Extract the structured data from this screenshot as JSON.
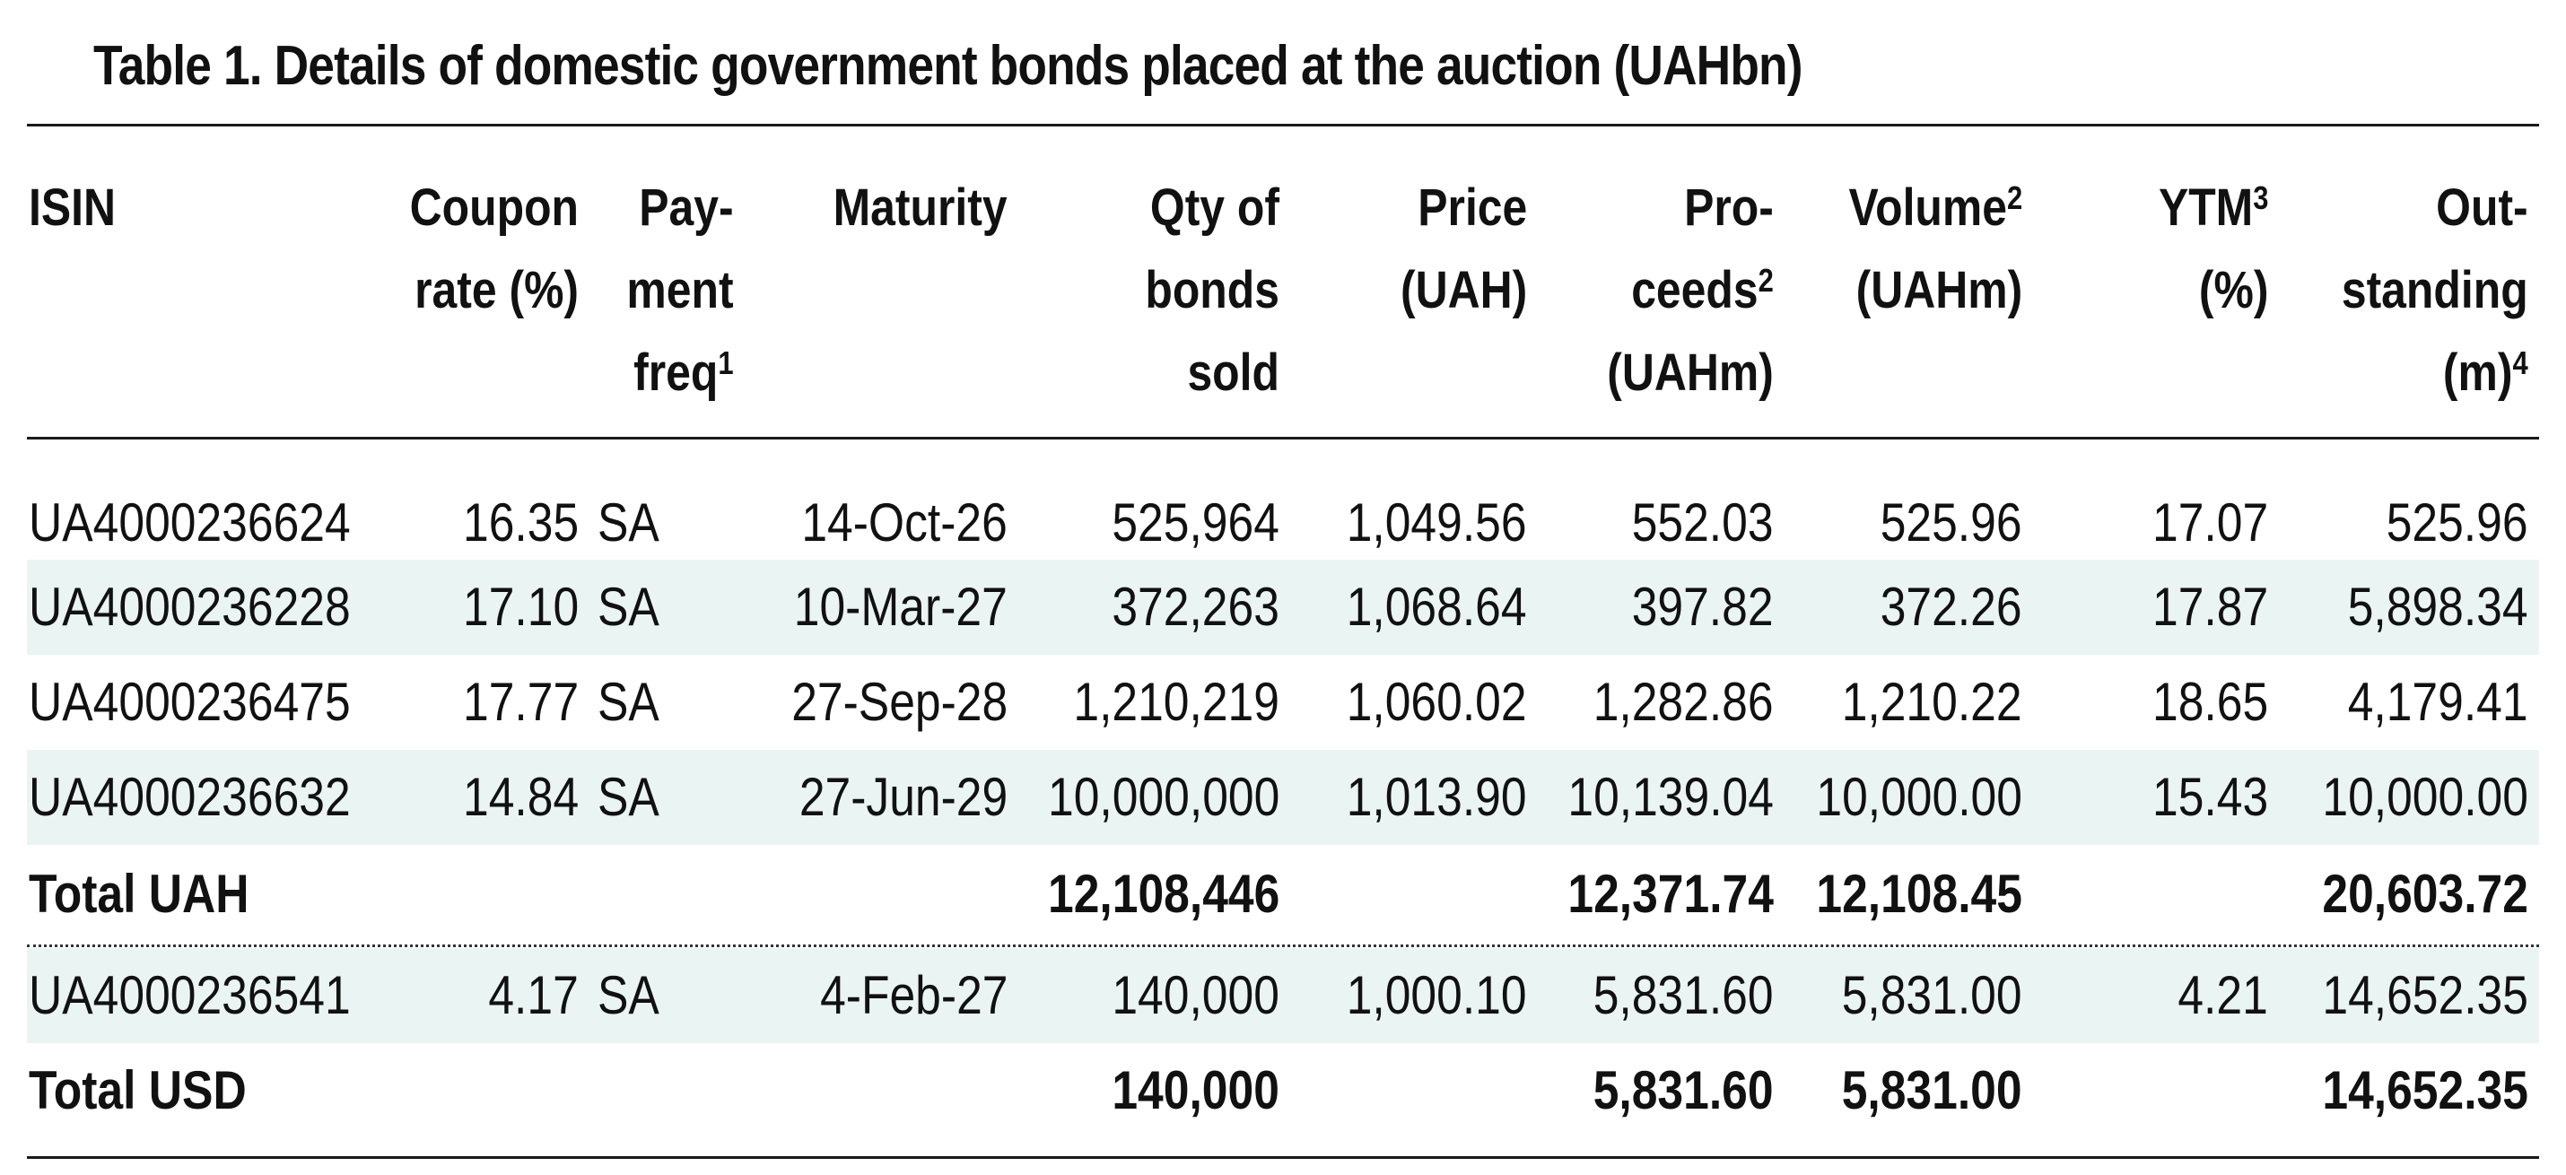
{
  "title": "Table 1. Details of domestic government bonds placed at the auction (UAHbn)",
  "colors": {
    "stripe": "#eaf4f3",
    "rule": "#1a1a1a",
    "text": "#111111"
  },
  "headers": {
    "isin": [
      "ISIN"
    ],
    "coupon": [
      "Coupon",
      "rate (%)"
    ],
    "payment": [
      "Pay-",
      "ment",
      "freq"
    ],
    "payment_sup": "1",
    "maturity": [
      "Maturity"
    ],
    "qty": [
      "Qty of",
      "bonds",
      "sold"
    ],
    "price": [
      "Price",
      "(UAH)"
    ],
    "proceeds": [
      "Pro-",
      "ceeds",
      "(UAHm)"
    ],
    "proceeds_sup": "2",
    "volume": [
      "Volume",
      "(UAHm)"
    ],
    "volume_sup": "2",
    "ytm": [
      "YTM",
      "(%)"
    ],
    "ytm_sup": "3",
    "outstanding": [
      "Out-",
      "standing",
      "(m)"
    ],
    "outstanding_sup": "4"
  },
  "rows": [
    {
      "isin": "UA4000236624",
      "coupon": "16.35",
      "freq": "SA",
      "maturity": "14-Oct-26",
      "qty": "525,964",
      "price": "1,049.56",
      "proceeds": "552.03",
      "volume": "525.96",
      "ytm": "17.07",
      "outstanding": "525.96"
    },
    {
      "isin": "UA4000236228",
      "coupon": "17.10",
      "freq": "SA",
      "maturity": "10-Mar-27",
      "qty": "372,263",
      "price": "1,068.64",
      "proceeds": "397.82",
      "volume": "372.26",
      "ytm": "17.87",
      "outstanding": "5,898.34"
    },
    {
      "isin": "UA4000236475",
      "coupon": "17.77",
      "freq": "SA",
      "maturity": "27-Sep-28",
      "qty": "1,210,219",
      "price": "1,060.02",
      "proceeds": "1,282.86",
      "volume": "1,210.22",
      "ytm": "18.65",
      "outstanding": "4,179.41"
    },
    {
      "isin": "UA4000236632",
      "coupon": "14.84",
      "freq": "SA",
      "maturity": "27-Jun-29",
      "qty": "10,000,000",
      "price": "1,013.90",
      "proceeds": "10,139.04",
      "volume": "10,000.00",
      "ytm": "15.43",
      "outstanding": "10,000.00"
    }
  ],
  "total_uah": {
    "label": "Total UAH",
    "qty": "12,108,446",
    "proceeds": "12,371.74",
    "volume": "12,108.45",
    "outstanding": "20,603.72"
  },
  "usd_row": {
    "isin": "UA4000236541",
    "coupon": "4.17",
    "freq": "SA",
    "maturity": "4-Feb-27",
    "qty": "140,000",
    "price": "1,000.10",
    "proceeds": "5,831.60",
    "volume": "5,831.00",
    "ytm": "4.21",
    "outstanding": "14,652.35"
  },
  "total_usd": {
    "label": "Total USD",
    "qty": "140,000",
    "proceeds": "5,831.60",
    "volume": "5,831.00",
    "outstanding": "14,652.35"
  }
}
